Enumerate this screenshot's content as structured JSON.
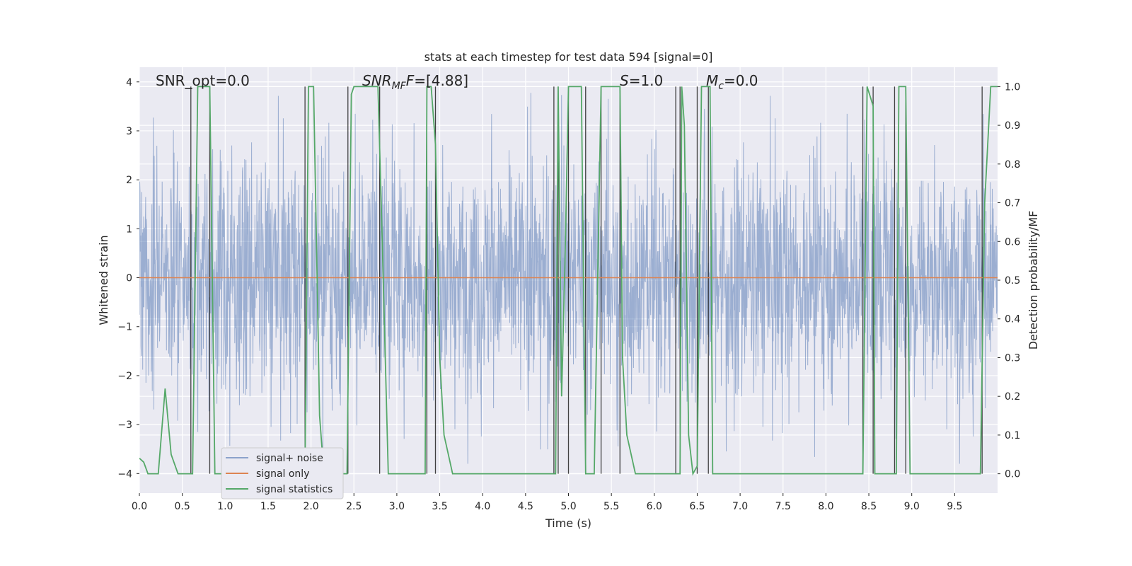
{
  "chart_data": {
    "type": "line",
    "title": "stats at each timestep for test data 594 [signal=0]",
    "xlabel": "Time (s)",
    "ylabel": "Whitened strain",
    "y2label": "Detection probability/MF",
    "xlim": [
      0,
      10
    ],
    "ylim": [
      -4.4,
      4.3
    ],
    "y2lim": [
      -0.05,
      1.05
    ],
    "xticks": [
      "0.0",
      "0.5",
      "1.0",
      "1.5",
      "2.0",
      "2.5",
      "3.0",
      "3.5",
      "4.0",
      "4.5",
      "5.0",
      "5.5",
      "6.0",
      "6.5",
      "7.0",
      "7.5",
      "8.0",
      "8.5",
      "9.0",
      "9.5"
    ],
    "yticks": [
      "4",
      "3",
      "2",
      "1",
      "0",
      "−1",
      "−2",
      "−3",
      "−4"
    ],
    "y2ticks": [
      "1.0",
      "0.9",
      "0.8",
      "0.7",
      "0.6",
      "0.5",
      "0.4",
      "0.3",
      "0.2",
      "0.1",
      "0.0"
    ],
    "grid": true,
    "legend_position": "lower-left",
    "annotations": {
      "snr_opt": "SNR_opt=0.0",
      "snr_mf_symbol": "SNR",
      "snr_mf_sub": "MF",
      "snr_mf_value": "=[4.88]",
      "s_symbol": "S",
      "s_value": "=1.0",
      "mc_symbol": "M",
      "mc_sub": "c",
      "mc_value": "=0.0"
    },
    "series": [
      {
        "name": "signal+ noise",
        "color": "#4c72b0",
        "style": "dense-noise",
        "typical_amplitude": 2.2,
        "peak_amplitude": 3.8
      },
      {
        "name": "signal only",
        "color": "#dd8452",
        "x": [
          0,
          10
        ],
        "y": [
          0,
          0
        ]
      },
      {
        "name": "signal statistics",
        "color": "#55a868",
        "axis": "right",
        "x": [
          0,
          0.05,
          0.1,
          0.15,
          0.22,
          0.3,
          0.37,
          0.45,
          0.5,
          0.6,
          0.62,
          0.68,
          0.72,
          0.78,
          0.82,
          0.88,
          0.95,
          1.9,
          1.93,
          1.97,
          2.03,
          2.08,
          2.1,
          2.15,
          2.22,
          2.3,
          2.4,
          2.42,
          2.47,
          2.5,
          2.6,
          2.78,
          2.83,
          2.9,
          3.0,
          3.05,
          3.1,
          3.2,
          3.33,
          3.35,
          3.4,
          3.45,
          3.5,
          3.55,
          3.6,
          3.65,
          3.7,
          4.8,
          4.85,
          4.88,
          4.92,
          4.96,
          5.0,
          5.05,
          5.15,
          5.2,
          5.3,
          5.38,
          5.42,
          5.5,
          5.6,
          5.63,
          5.68,
          5.78,
          6.3,
          6.32,
          6.35,
          6.4,
          6.45,
          6.5,
          6.55,
          6.58,
          6.65,
          6.68,
          8.43,
          8.48,
          8.55,
          8.57,
          8.62,
          8.82,
          8.85,
          8.93,
          8.98,
          9.05,
          9.1,
          9.8,
          9.85,
          9.92,
          10.0
        ],
        "y": [
          0.04,
          0.03,
          0.0,
          0.0,
          0.0,
          0.22,
          0.05,
          0.0,
          0.0,
          0.0,
          0.0,
          1.0,
          1.0,
          1.0,
          1.0,
          0.0,
          0.0,
          0.0,
          0.0,
          1.0,
          1.0,
          0.4,
          0.15,
          0.0,
          0.0,
          0.0,
          0.0,
          0.0,
          0.98,
          1.0,
          1.0,
          1.0,
          0.6,
          0.0,
          0.0,
          0.0,
          0.0,
          0.0,
          0.0,
          1.0,
          1.0,
          0.85,
          0.3,
          0.1,
          0.05,
          0.0,
          0.0,
          0.0,
          0.0,
          1.0,
          0.2,
          0.55,
          1.0,
          1.0,
          1.0,
          0.0,
          0.0,
          1.0,
          1.0,
          1.0,
          1.0,
          0.3,
          0.1,
          0.0,
          0.0,
          1.0,
          0.9,
          0.1,
          0.0,
          0.02,
          1.0,
          1.0,
          1.0,
          0.0,
          0.0,
          1.0,
          0.95,
          0.0,
          0.0,
          0.0,
          1.0,
          1.0,
          0.0,
          0.0,
          0.0,
          0.0,
          0.7,
          1.0,
          1.0
        ]
      }
    ],
    "marker_lines": {
      "color": "#222222",
      "x": [
        0.6,
        0.82,
        1.93,
        2.43,
        2.8,
        3.35,
        3.45,
        4.83,
        4.88,
        5.0,
        5.2,
        5.38,
        5.6,
        6.25,
        6.3,
        6.5,
        6.63,
        8.43,
        8.55,
        8.8,
        8.93,
        9.82
      ]
    }
  }
}
